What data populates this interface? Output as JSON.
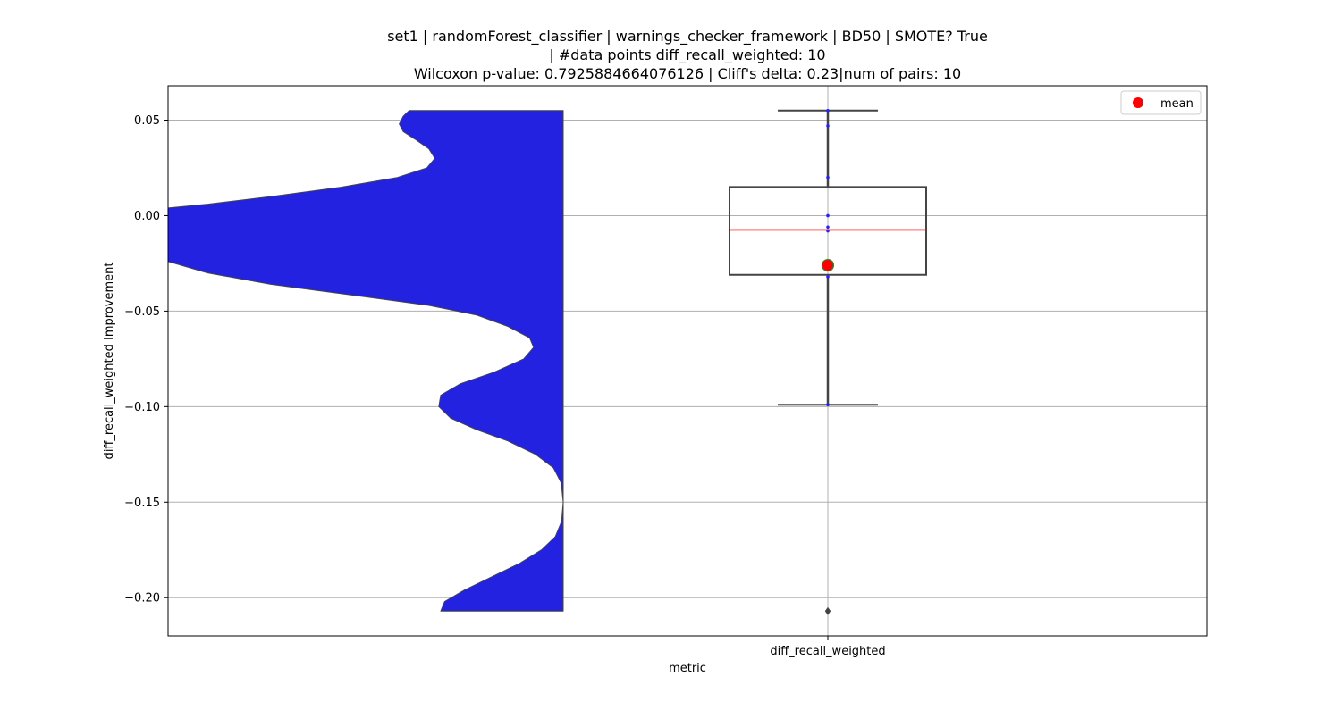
{
  "chart_data": {
    "type": "violin+box",
    "title_lines": [
      "set1 | randomForest_classifier | warnings_checker_framework | BD50 | SMOTE? True",
      "| #data points diff_recall_weighted: 10",
      "Wilcoxon p-value: 0.7925884664076126 | Cliff's delta: 0.23|num of pairs: 10"
    ],
    "xlabel": "metric",
    "ylabel": "diff_recall_weighted Improvement",
    "category": "diff_recall_weighted",
    "ylim": [
      -0.22,
      0.068
    ],
    "yticks": [
      0.05,
      0.0,
      -0.05,
      -0.1,
      -0.15,
      -0.2
    ],
    "ytick_labels": [
      "0.05",
      "0.00",
      "−0.05",
      "−0.10",
      "−0.15",
      "−0.20"
    ],
    "grid": true,
    "legend": {
      "placement": "top-right",
      "entries": [
        {
          "label": "mean",
          "color": "#ff0000"
        }
      ]
    },
    "box": {
      "q1": -0.031,
      "median": -0.0075,
      "q3": 0.015,
      "whisker_low": -0.099,
      "whisker_high": 0.055,
      "mean": -0.026
    },
    "outliers": [
      -0.207
    ],
    "points": [
      0.055,
      0.047,
      0.02,
      0.0,
      -0.006,
      -0.008,
      -0.026,
      -0.032,
      -0.099,
      -0.207
    ],
    "violin": {
      "color": "#2222e0",
      "profile": [
        [
          0.055,
          0.39
        ],
        [
          0.052,
          0.405
        ],
        [
          0.048,
          0.415
        ],
        [
          0.044,
          0.405
        ],
        [
          0.04,
          0.375
        ],
        [
          0.035,
          0.34
        ],
        [
          0.03,
          0.325
        ],
        [
          0.025,
          0.345
        ],
        [
          0.02,
          0.42
        ],
        [
          0.015,
          0.56
        ],
        [
          0.01,
          0.74
        ],
        [
          0.006,
          0.9
        ],
        [
          0.004,
          1.0
        ],
        [
          -0.024,
          1.0
        ],
        [
          -0.03,
          0.9
        ],
        [
          -0.036,
          0.74
        ],
        [
          -0.042,
          0.52
        ],
        [
          -0.047,
          0.34
        ],
        [
          -0.052,
          0.22
        ],
        [
          -0.058,
          0.14
        ],
        [
          -0.064,
          0.085
        ],
        [
          -0.069,
          0.075
        ],
        [
          -0.075,
          0.1
        ],
        [
          -0.082,
          0.175
        ],
        [
          -0.088,
          0.26
        ],
        [
          -0.094,
          0.31
        ],
        [
          -0.1,
          0.315
        ],
        [
          -0.106,
          0.285
        ],
        [
          -0.112,
          0.22
        ],
        [
          -0.118,
          0.14
        ],
        [
          -0.125,
          0.07
        ],
        [
          -0.132,
          0.025
        ],
        [
          -0.14,
          0.005
        ],
        [
          -0.15,
          0.0
        ],
        [
          -0.16,
          0.004
        ],
        [
          -0.168,
          0.02
        ],
        [
          -0.175,
          0.055
        ],
        [
          -0.182,
          0.11
        ],
        [
          -0.189,
          0.18
        ],
        [
          -0.196,
          0.25
        ],
        [
          -0.202,
          0.3
        ],
        [
          -0.207,
          0.31
        ]
      ]
    },
    "colors": {
      "box_edge": "#444444",
      "median": "#ff0000",
      "mean_fill": "#ff0000",
      "mean_edge": "#2e8b2e",
      "points": "#2222ff",
      "grid": "#b0b0b0"
    }
  }
}
